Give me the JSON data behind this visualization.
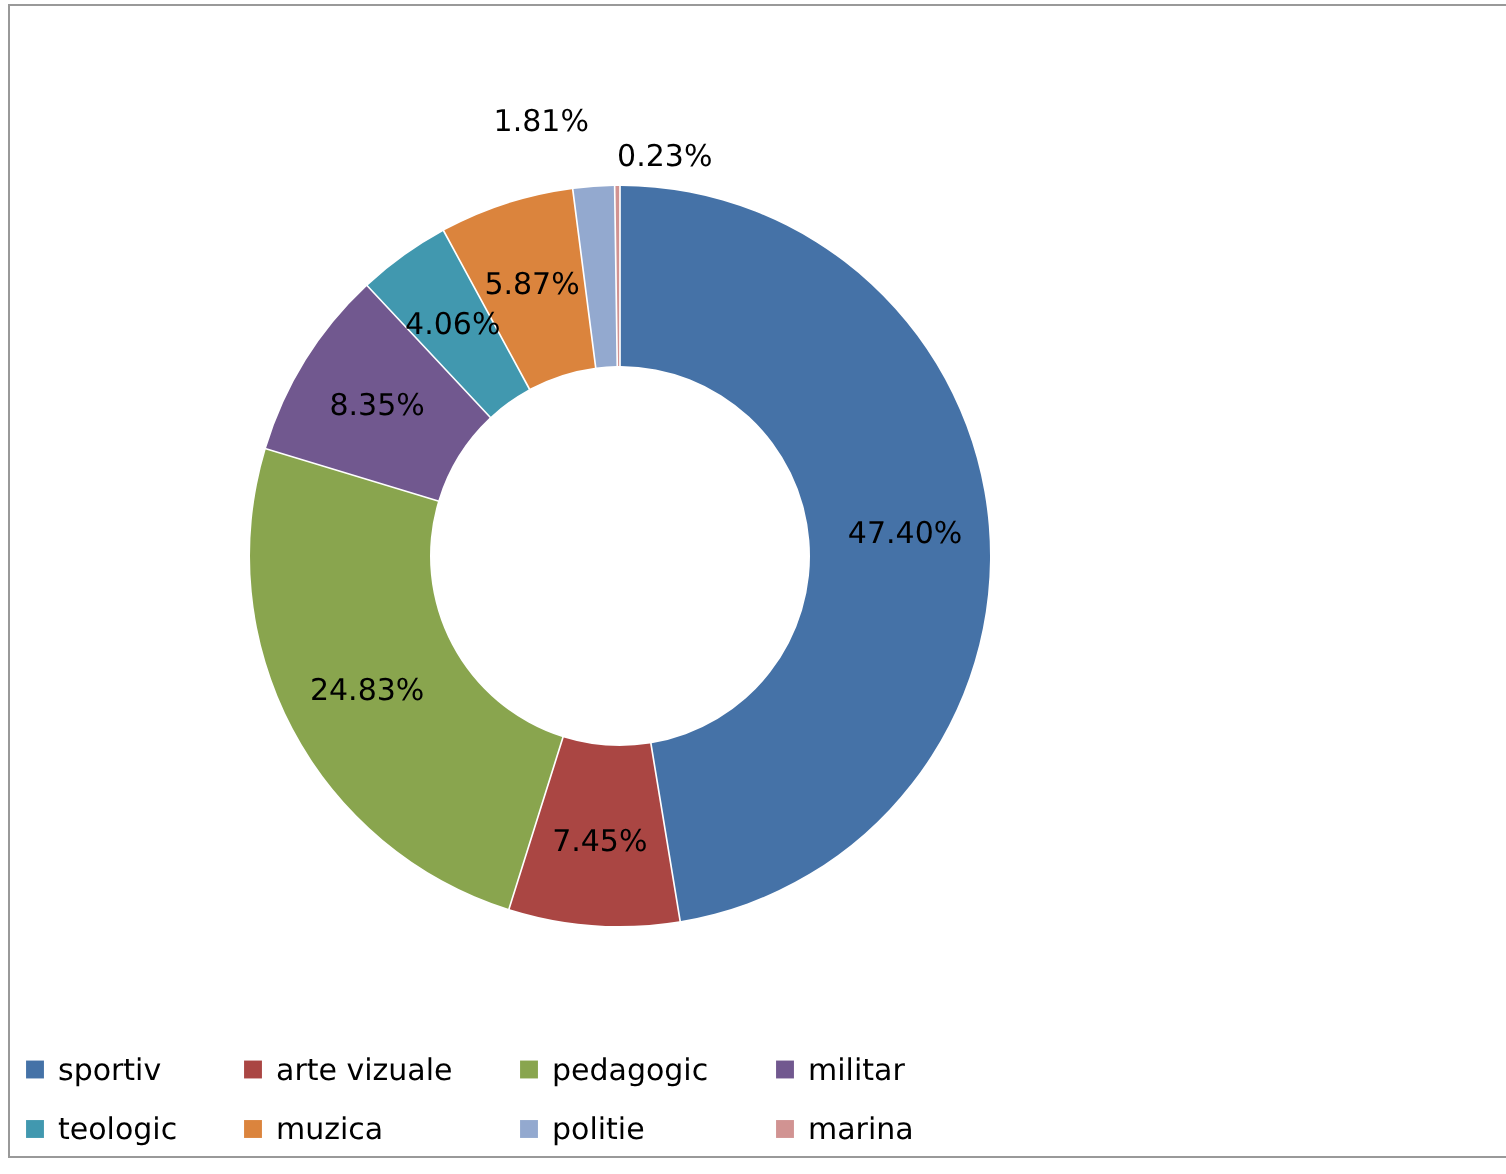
{
  "chart_data": {
    "type": "donut",
    "categories": [
      "sportiv",
      "arte vizuale",
      "pedagogic",
      "militar",
      "teologic",
      "muzica",
      "politie",
      "marina"
    ],
    "values": [
      47.4,
      7.45,
      24.83,
      8.35,
      4.06,
      5.87,
      1.81,
      0.23
    ],
    "colors": [
      "#4572a7",
      "#aa4643",
      "#89a54e",
      "#71588f",
      "#4198af",
      "#db843d",
      "#93a9cf",
      "#d19392"
    ],
    "value_labels": [
      "47.40%",
      "7.45%",
      "24.83%",
      "8.35%",
      "4.06%",
      "5.87%",
      "1.81%",
      "0.23%"
    ],
    "legend": "bottom"
  }
}
